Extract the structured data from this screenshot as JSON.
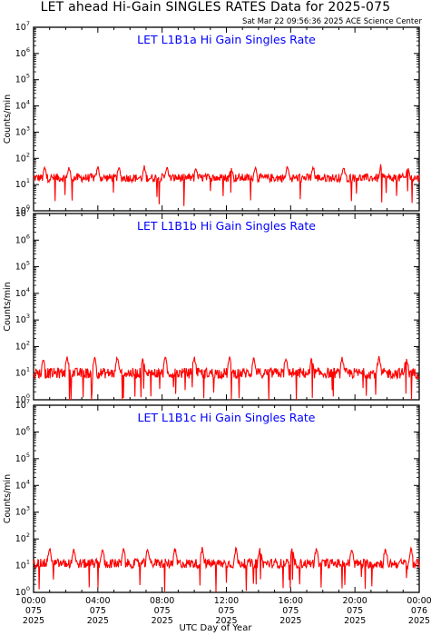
{
  "title": "LET ahead Hi-Gain SINGLES RATES Data for 2025-075",
  "timestamp": "Sat Mar 22 09:56:36 2025 ACE Science Center",
  "xlabel": "UTC Day of Year",
  "colors": {
    "series": "#ff0000",
    "panel_title": "#0000ff",
    "axes": "#000000"
  },
  "chart_data": [
    {
      "type": "line",
      "title": "LET L1B1a Hi Gain Singles Rate",
      "ylabel": "Counts/min",
      "yscale": "log",
      "ylim": [
        1,
        10000000
      ],
      "ytick_exponents": [
        0,
        1,
        2,
        3,
        4,
        5,
        6,
        7
      ],
      "xlim_hours": [
        0,
        24
      ],
      "baseline": 18,
      "noise": 0.16,
      "dips": 0.02,
      "spikes": [
        0.7,
        2.2,
        4.0,
        5.3,
        6.9,
        8.3,
        10.1,
        12.3,
        13.8,
        15.8,
        17.4,
        19.3,
        21.6,
        23.3
      ],
      "spike_height": 50
    },
    {
      "type": "line",
      "title": "LET L1B1b Hi Gain Singles Rate",
      "ylabel": "Counts/min",
      "yscale": "log",
      "ylim": [
        1,
        10000000
      ],
      "ytick_exponents": [
        0,
        1,
        2,
        3,
        4,
        5,
        6,
        7
      ],
      "xlim_hours": [
        0,
        24
      ],
      "baseline": 10,
      "noise": 0.2,
      "dips": 0.05,
      "spikes": [
        0.6,
        2.1,
        3.8,
        5.2,
        6.8,
        8.2,
        10.0,
        12.2,
        13.7,
        15.7,
        17.3,
        19.2,
        21.5,
        23.2
      ],
      "spike_height": 40
    },
    {
      "type": "line",
      "title": "LET L1B1c Hi Gain Singles Rate",
      "ylabel": "Counts/min",
      "yscale": "log",
      "ylim": [
        1,
        10000000
      ],
      "ytick_exponents": [
        0,
        1,
        2,
        3,
        4,
        5,
        6,
        7
      ],
      "xlim_hours": [
        0,
        24
      ],
      "baseline": 12,
      "noise": 0.18,
      "dips": 0.04,
      "spikes": [
        1.0,
        2.5,
        4.3,
        5.6,
        7.1,
        8.8,
        10.5,
        12.6,
        14.1,
        16.1,
        17.6,
        19.8,
        21.9,
        23.5
      ],
      "spike_height": 45
    }
  ],
  "x_ticks": [
    {
      "time": "00:00",
      "doy": "075",
      "year": "2025"
    },
    {
      "time": "04:00",
      "doy": "075",
      "year": "2025"
    },
    {
      "time": "08:00",
      "doy": "075",
      "year": "2025"
    },
    {
      "time": "12:00",
      "doy": "075",
      "year": "2025"
    },
    {
      "time": "16:00",
      "doy": "075",
      "year": "2025"
    },
    {
      "time": "20:00",
      "doy": "075",
      "year": "2025"
    },
    {
      "time": "00:00",
      "doy": "076",
      "year": "2025"
    }
  ]
}
